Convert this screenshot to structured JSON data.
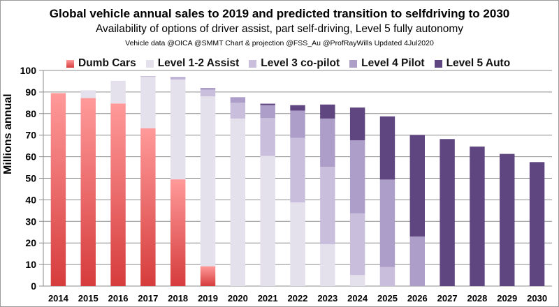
{
  "chart_data": {
    "type": "bar",
    "stacked": true,
    "title": "Global vehicle annual sales to 2019 and predicted transition to selfdriving to 2030",
    "subtitle": "Availability of options of driver assist, part self-driving, Level 5 fully autonomy",
    "credit": "Vehicle data @OICA @SMMT  Chart & projection @FSS_Au @ProfRayWills Updated 4Jul2020",
    "xlabel": "",
    "ylabel": "Millions annual",
    "ylim": [
      0,
      100
    ],
    "yticks": [
      0,
      10,
      20,
      30,
      40,
      50,
      60,
      70,
      80,
      90,
      100
    ],
    "grid": true,
    "legend_position": "top",
    "categories": [
      "2014",
      "2015",
      "2016",
      "2017",
      "2018",
      "2019",
      "2020",
      "2021",
      "2022",
      "2023",
      "2024",
      "2025",
      "2026",
      "2027",
      "2028",
      "2029",
      "2030"
    ],
    "series": [
      {
        "name": "Dumb Cars",
        "color": "#e8565a",
        "values": [
          89.5,
          87.2,
          84.7,
          73.2,
          49.5,
          9.2,
          0,
          0,
          0,
          0,
          0,
          0,
          0,
          0,
          0,
          0,
          0
        ]
      },
      {
        "name": "Level 1-2 Assist",
        "color": "#e4e0ec",
        "values": [
          0,
          3.6,
          10.5,
          23.8,
          46.2,
          78.8,
          77.7,
          60.4,
          38.8,
          19.4,
          5.1,
          0,
          0,
          0,
          0,
          0,
          0
        ]
      },
      {
        "name": "Level 3 co-pilot",
        "color": "#c9bfdc",
        "values": [
          0,
          0,
          0,
          0.4,
          0.6,
          3.0,
          7.3,
          17.5,
          29.9,
          35.9,
          28.6,
          8.8,
          0,
          0,
          0,
          0,
          0
        ]
      },
      {
        "name": "Level 4 Pilot",
        "color": "#ad9ec9",
        "values": [
          0,
          0,
          0,
          0,
          0.6,
          0.9,
          2.6,
          6.0,
          12.7,
          22.4,
          33.9,
          40.6,
          23.0,
          0,
          0,
          0,
          0
        ]
      },
      {
        "name": "Level 5 Auto",
        "color": "#5f4680",
        "values": [
          0,
          0,
          0,
          0,
          0,
          0,
          0,
          0.7,
          2.5,
          6.5,
          15.2,
          29.3,
          47.1,
          68.2,
          64.7,
          61.3,
          57.5
        ]
      }
    ]
  }
}
